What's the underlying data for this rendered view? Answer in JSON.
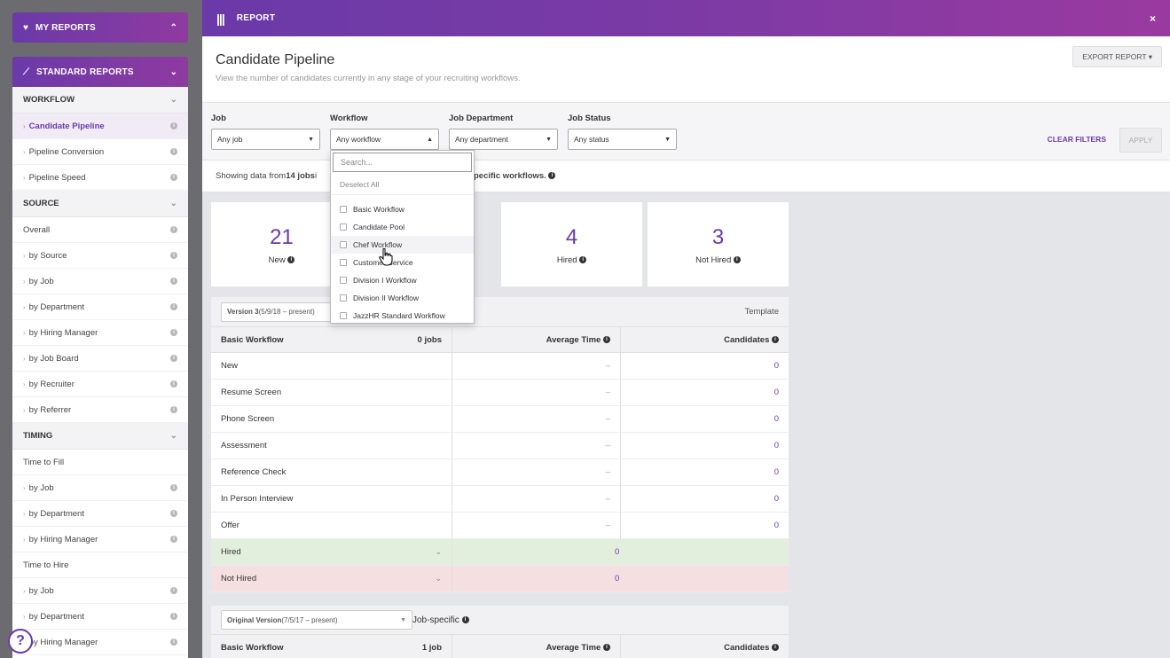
{
  "sidebar": {
    "my_reports": "MY REPORTS",
    "standard_reports": "STANDARD REPORTS",
    "rows": [
      {
        "label": "WORKFLOW",
        "type": "section"
      },
      {
        "label": "Candidate Pipeline",
        "type": "item",
        "arrow": true,
        "active": true,
        "info": true
      },
      {
        "label": "Pipeline Conversion",
        "type": "item",
        "arrow": true,
        "info": true
      },
      {
        "label": "Pipeline Speed",
        "type": "item",
        "arrow": true,
        "info": true
      },
      {
        "label": "SOURCE",
        "type": "section"
      },
      {
        "label": "Overall",
        "type": "item",
        "arrow": false,
        "info": true
      },
      {
        "label": "by Source",
        "type": "item",
        "arrow": true,
        "info": true
      },
      {
        "label": "by Job",
        "type": "item",
        "arrow": true,
        "info": true
      },
      {
        "label": "by Department",
        "type": "item",
        "arrow": true,
        "info": true
      },
      {
        "label": "by Hiring Manager",
        "type": "item",
        "arrow": true,
        "info": true
      },
      {
        "label": "by Job Board",
        "type": "item",
        "arrow": true,
        "info": true
      },
      {
        "label": "by Recruiter",
        "type": "item",
        "arrow": true,
        "info": true
      },
      {
        "label": "by Referrer",
        "type": "item",
        "arrow": true,
        "info": true
      },
      {
        "label": "TIMING",
        "type": "section"
      },
      {
        "label": "Time to Fill",
        "type": "item",
        "arrow": false,
        "info": false
      },
      {
        "label": "by Job",
        "type": "item",
        "arrow": true,
        "info": true
      },
      {
        "label": "by Department",
        "type": "item",
        "arrow": true,
        "info": true
      },
      {
        "label": "by Hiring Manager",
        "type": "item",
        "arrow": true,
        "info": true
      },
      {
        "label": "Time to Hire",
        "type": "item",
        "arrow": false,
        "info": false
      },
      {
        "label": "by Job",
        "type": "item",
        "arrow": true,
        "info": true
      },
      {
        "label": "by Department",
        "type": "item",
        "arrow": true,
        "info": true
      },
      {
        "label": "by Hiring Manager",
        "type": "item",
        "arrow": true,
        "info": true
      }
    ]
  },
  "topbar": {
    "title": "REPORT",
    "close": "×"
  },
  "header": {
    "title": "Candidate Pipeline",
    "subtitle": "View the number of candidates currently in any stage of your recruiting workflows.",
    "export": "EXPORT REPORT ▾"
  },
  "filters": {
    "job": {
      "label": "Job",
      "value": "Any job"
    },
    "workflow": {
      "label": "Workflow",
      "value": "Any workflow"
    },
    "department": {
      "label": "Job Department",
      "value": "Any department"
    },
    "status": {
      "label": "Job Status",
      "value": "Any status"
    },
    "clear": "CLEAR FILTERS",
    "apply": "APPLY"
  },
  "showing": {
    "prefix": "Showing data from ",
    "jobs": "14 jobs",
    "mid": " i",
    "suffix": "pecific workflows."
  },
  "cards": [
    {
      "num": "21",
      "label": "New"
    },
    {
      "num": "4",
      "label": "Hired"
    },
    {
      "num": "3",
      "label": "Not Hired"
    }
  ],
  "table1": {
    "version": "Version 3",
    "version_range": " (5/9/18 – present)",
    "kind": "Template",
    "workflow": "Basic Workflow",
    "jobs": "0 jobs",
    "avg_header": "Average Time",
    "cand_header": "Candidates",
    "rows": [
      {
        "stage": "New",
        "avg": "–",
        "count": "0"
      },
      {
        "stage": "Resume Screen",
        "avg": "–",
        "count": "0"
      },
      {
        "stage": "Phone Screen",
        "avg": "–",
        "count": "0"
      },
      {
        "stage": "Assessment",
        "avg": "–",
        "count": "0"
      },
      {
        "stage": "Reference Check",
        "avg": "–",
        "count": "0"
      },
      {
        "stage": "In Person Interview",
        "avg": "–",
        "count": "0"
      },
      {
        "stage": "Offer",
        "avg": "–",
        "count": "0"
      }
    ],
    "hired": {
      "stage": "Hired",
      "count": "0"
    },
    "not_hired": {
      "stage": "Not Hired",
      "count": "0"
    }
  },
  "table2": {
    "version": "Original Version",
    "version_range": " (7/5/17 – present)",
    "kind": "Job-specific",
    "workflow": "Basic Workflow",
    "jobs": "1 job",
    "avg_header": "Average Time",
    "cand_header": "Candidates"
  },
  "dropdown": {
    "search_placeholder": "Search...",
    "deselect": "Deselect All",
    "items": [
      "Basic Workflow",
      "Candidate Pool",
      "Chef Workflow",
      "Customer Service",
      "Division I Workflow",
      "Division II Workflow",
      "JazzHR Standard Workflow"
    ]
  },
  "help": "?"
}
